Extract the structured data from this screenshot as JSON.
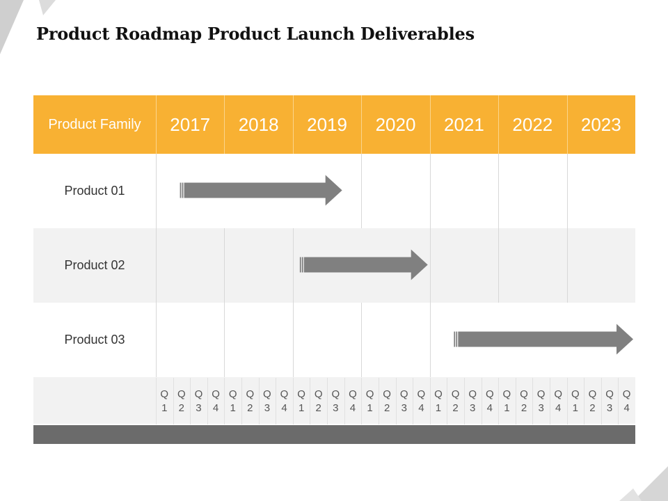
{
  "title": "Product Roadmap Product Launch Deliverables",
  "colors": {
    "header": "#f8b133",
    "arrow": "#808080",
    "footer": "#6b6b6b",
    "alt_row": "#f2f2f2"
  },
  "header": {
    "family_label": "Product Family",
    "years": [
      "2017",
      "2018",
      "2019",
      "2020",
      "2021",
      "2022",
      "2023"
    ]
  },
  "products": [
    {
      "name": "Product 01",
      "start": "2017 Q2",
      "end": "2019 Q3"
    },
    {
      "name": "Product 02",
      "start": "2019 Q1",
      "end": "2020 Q4"
    },
    {
      "name": "Product 03",
      "start": "2021 Q2",
      "end": "2023 Q4"
    }
  ],
  "quarter_letter": "Q",
  "quarters": [
    "1",
    "2",
    "3",
    "4"
  ]
}
